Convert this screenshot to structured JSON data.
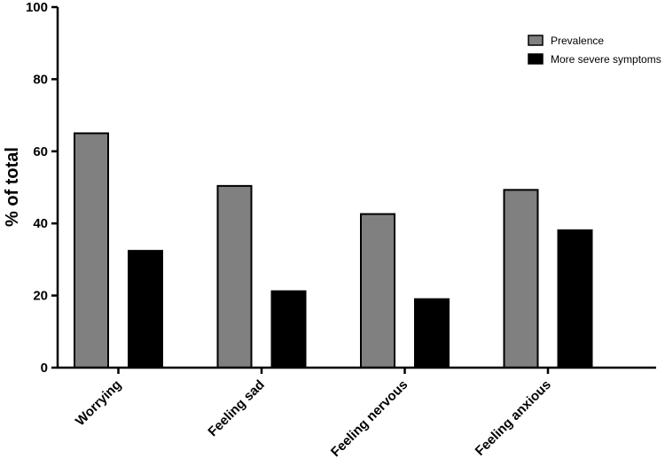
{
  "chart_data": {
    "type": "bar",
    "categories": [
      "Worrying",
      "Feeling sad",
      "Feeling nervous",
      "Feeling anxious"
    ],
    "series": [
      {
        "name": "Prevalence",
        "values": [
          65.0,
          50.4,
          42.6,
          49.3
        ],
        "color": "#808080"
      },
      {
        "name": "More severe symptoms",
        "values": [
          32.4,
          21.2,
          19.0,
          38.1
        ],
        "color": "#000000"
      }
    ],
    "ylabel": "% of total",
    "ylim": [
      0,
      100
    ],
    "yticks": [
      0,
      20,
      40,
      60,
      80,
      100
    ],
    "grid": false,
    "legend_position": "top-right"
  }
}
